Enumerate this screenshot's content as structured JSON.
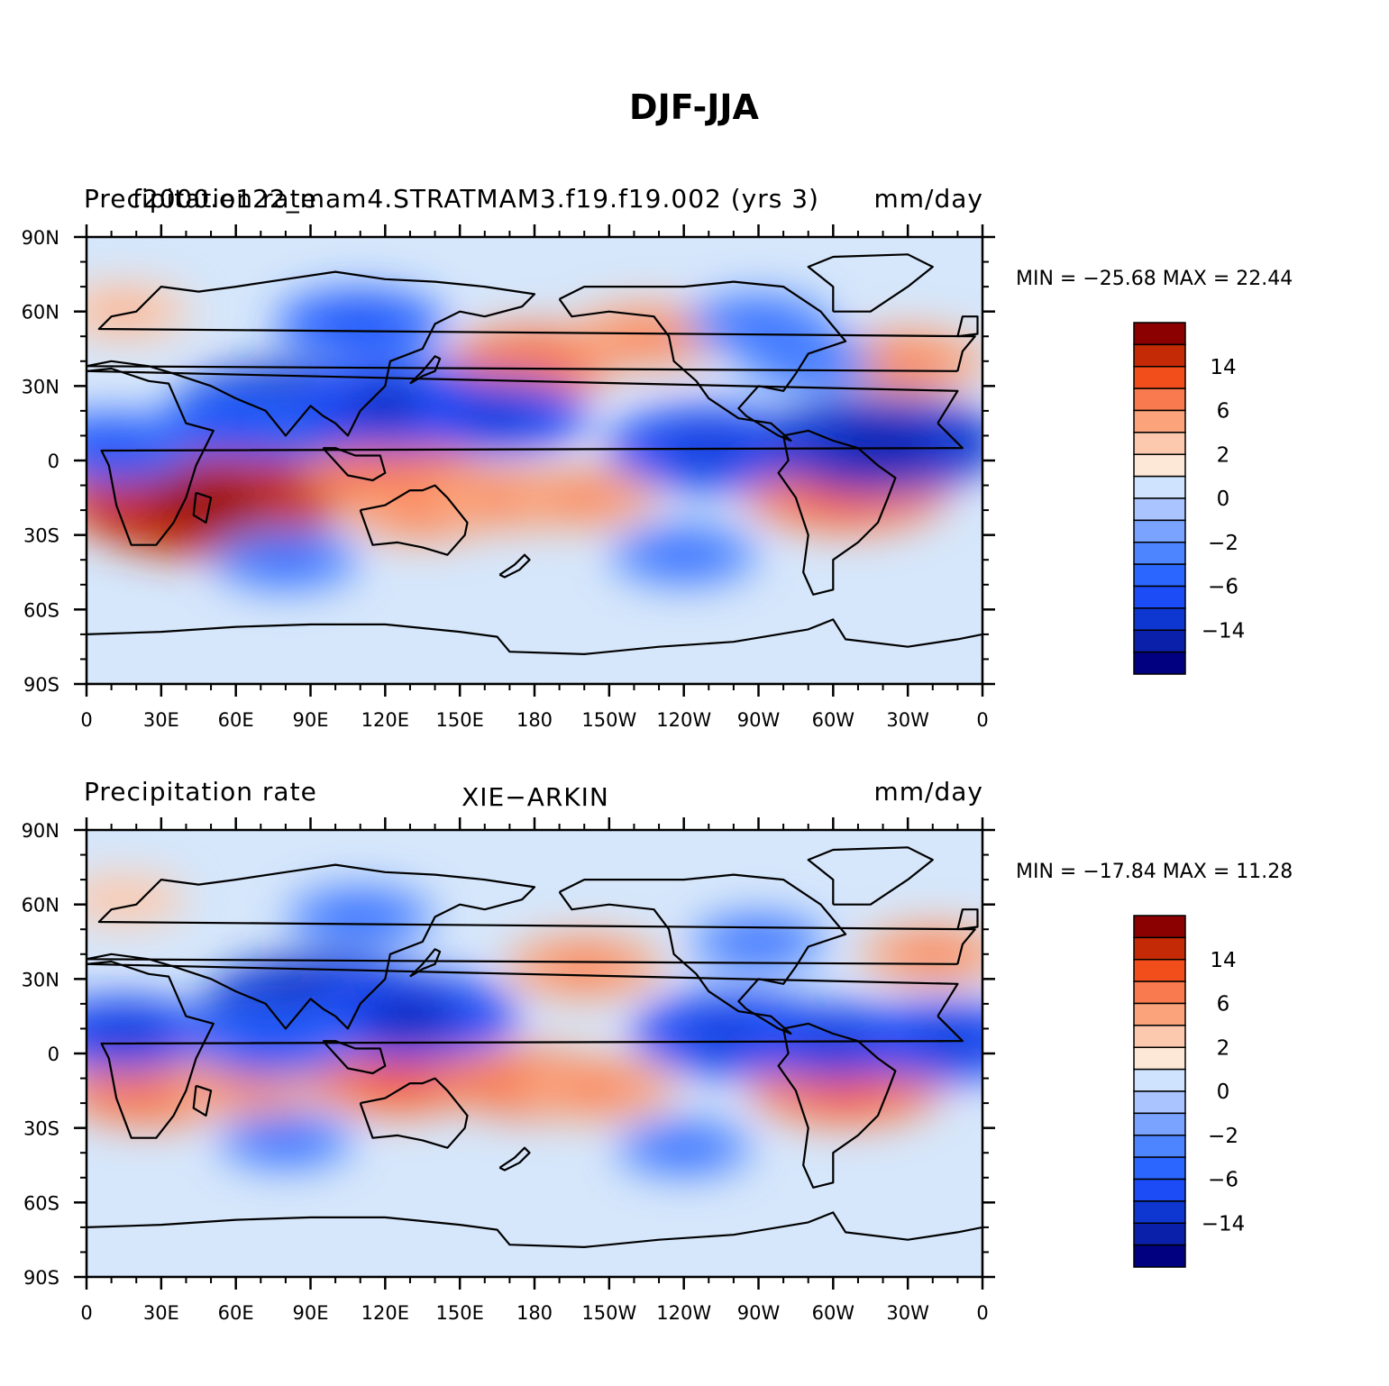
{
  "figure": {
    "title": "DJF-JJA"
  },
  "colors": {
    "levels_palette": [
      "#000080",
      "#0a1faa",
      "#0e36d1",
      "#1c4cf5",
      "#2a66ff",
      "#4d84ff",
      "#7aa2ff",
      "#a9c4ff",
      "#cfe3ff",
      "#fde7d6",
      "#fcc9ae",
      "#fba47c",
      "#f97a4e",
      "#f24e1c",
      "#c32a05",
      "#8b0000"
    ],
    "background_field": "#d6e7fb",
    "coast": "#000000"
  },
  "chart_data": [
    {
      "type": "heatmap",
      "left_title": "Precipitation rate",
      "center_title": "f2000.e122_mam4.STRATMAM3.f19.f19.002 (yrs 3)",
      "right_title": "mm/day",
      "min_max_text": "MIN = −25.68 MAX =   22.44",
      "min": -25.68,
      "max": 22.44,
      "units": "mm/day",
      "x_ticks": [
        "0",
        "30E",
        "60E",
        "90E",
        "120E",
        "150E",
        "180",
        "150W",
        "120W",
        "90W",
        "60W",
        "30W",
        "0"
      ],
      "y_ticks": [
        "90N",
        "60N",
        "30N",
        "0",
        "30S",
        "60S",
        "90S"
      ],
      "colorbar_labels": [
        "14",
        "6",
        "2",
        "0",
        "−2",
        "−6",
        "−14"
      ],
      "anomalies": [
        {
          "lon": 305,
          "lat": -12,
          "value": 9
        },
        {
          "lon": 20,
          "lat": -15,
          "value": 8
        },
        {
          "lon": 48,
          "lat": -17,
          "value": 14
        },
        {
          "lon": 125,
          "lat": -8,
          "value": 7
        },
        {
          "lon": 135,
          "lat": -20,
          "value": 5
        },
        {
          "lon": 170,
          "lat": -15,
          "value": 5
        },
        {
          "lon": 200,
          "lat": -15,
          "value": 4
        },
        {
          "lon": 180,
          "lat": 40,
          "value": 6
        },
        {
          "lon": 225,
          "lat": 50,
          "value": 5
        },
        {
          "lon": 330,
          "lat": 40,
          "value": 5
        },
        {
          "lon": 15,
          "lat": 60,
          "value": 3
        },
        {
          "lon": 250,
          "lat": 5,
          "value": -9
        },
        {
          "lon": 320,
          "lat": 7,
          "value": -12
        },
        {
          "lon": 80,
          "lat": 20,
          "value": -11
        },
        {
          "lon": 125,
          "lat": 22,
          "value": -10
        },
        {
          "lon": 165,
          "lat": 18,
          "value": -7
        },
        {
          "lon": 60,
          "lat": 15,
          "value": -5
        },
        {
          "lon": 110,
          "lat": 55,
          "value": -6
        },
        {
          "lon": 270,
          "lat": 55,
          "value": -4
        },
        {
          "lon": 80,
          "lat": -40,
          "value": -4
        },
        {
          "lon": 240,
          "lat": -38,
          "value": -4
        },
        {
          "lon": 290,
          "lat": 40,
          "value": -3
        },
        {
          "lon": 10,
          "lat": 5,
          "value": -6
        }
      ]
    },
    {
      "type": "heatmap",
      "left_title": "Precipitation rate",
      "center_title": "XIE−ARKIN",
      "right_title": "mm/day",
      "min_max_text": "MIN = −17.84 MAX =   11.28",
      "min": -17.84,
      "max": 11.28,
      "units": "mm/day",
      "x_ticks": [
        "0",
        "30E",
        "60E",
        "90E",
        "120E",
        "150E",
        "180",
        "150W",
        "120W",
        "90W",
        "60W",
        "30W",
        "0"
      ],
      "y_ticks": [
        "90N",
        "60N",
        "30N",
        "0",
        "30S",
        "60S",
        "90S"
      ],
      "colorbar_labels": [
        "14",
        "6",
        "2",
        "0",
        "−2",
        "−6",
        "−14"
      ],
      "anomalies": [
        {
          "lon": 305,
          "lat": -13,
          "value": 8
        },
        {
          "lon": 25,
          "lat": -15,
          "value": 6
        },
        {
          "lon": 65,
          "lat": -12,
          "value": 5
        },
        {
          "lon": 125,
          "lat": -10,
          "value": 7
        },
        {
          "lon": 180,
          "lat": -12,
          "value": 6
        },
        {
          "lon": 205,
          "lat": -14,
          "value": 5
        },
        {
          "lon": 200,
          "lat": 35,
          "value": 5
        },
        {
          "lon": 340,
          "lat": 40,
          "value": 4
        },
        {
          "lon": 15,
          "lat": 62,
          "value": 2
        },
        {
          "lon": 95,
          "lat": 20,
          "value": -12
        },
        {
          "lon": 130,
          "lat": 15,
          "value": -10
        },
        {
          "lon": 260,
          "lat": 8,
          "value": -9
        },
        {
          "lon": 345,
          "lat": 5,
          "value": -8
        },
        {
          "lon": 15,
          "lat": 8,
          "value": -7
        },
        {
          "lon": 75,
          "lat": 5,
          "value": -6
        },
        {
          "lon": 300,
          "lat": 5,
          "value": -7
        },
        {
          "lon": 110,
          "lat": 55,
          "value": -4
        },
        {
          "lon": 270,
          "lat": 45,
          "value": -3
        },
        {
          "lon": 240,
          "lat": -38,
          "value": -3
        },
        {
          "lon": 80,
          "lat": -35,
          "value": -3
        }
      ]
    }
  ]
}
